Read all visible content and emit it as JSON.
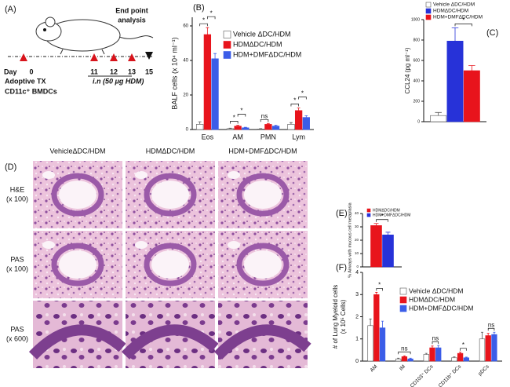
{
  "diagram": {
    "label": "(A)",
    "endpoint": [
      "End point",
      "analysis"
    ],
    "day_label": "Day",
    "days": [
      "0",
      "11",
      "12",
      "13",
      "15"
    ],
    "adoptive": "Adoptive TX",
    "cells": "CD11c⁺ BMDCs",
    "treatment": "i.n (50 μg HDM)"
  },
  "images": {
    "label": "(D)",
    "columns": [
      "VehicleΔDC/HDM",
      "HDMΔDC/HDM",
      "HDM+DMFΔDC/HDM"
    ],
    "rows": [
      {
        "stain": "H&E",
        "magnification": "(x 100)"
      },
      {
        "stain": "PAS",
        "magnification": "(x 100)"
      },
      {
        "stain": "PAS",
        "magnification": "(x 600)"
      }
    ]
  },
  "chart_data": [
    {
      "label": "(B)",
      "type": "bar",
      "y_label": "BALF cells (x 10⁴ ml⁻¹)",
      "categories": [
        "Eos",
        "AM",
        "PMN",
        "Lym"
      ],
      "series": [
        {
          "name": "Vehicle ΔDC/HDM",
          "color": "#ffffff",
          "values": [
            3,
            0.5,
            0.3,
            3
          ],
          "errors": [
            1.5,
            0.3,
            0.2,
            1
          ]
        },
        {
          "name": "HDMΔDC/HDM",
          "color": "#e8141c",
          "values": [
            55,
            2,
            3,
            11
          ],
          "errors": [
            4,
            0.5,
            0.5,
            1.5
          ]
        },
        {
          "name": "HDM+DMFΔDC/HDM",
          "color": "#3b5de8",
          "values": [
            41,
            1,
            2,
            7
          ],
          "errors": [
            3,
            0.3,
            0.5,
            1
          ]
        }
      ],
      "ylim": [
        0,
        65
      ],
      "yticks": [
        0,
        20,
        40,
        60
      ],
      "annotations": [
        "*",
        "*",
        "*",
        "*",
        "ns",
        "*",
        "*"
      ]
    },
    {
      "label": "(C)",
      "type": "bar",
      "y_label": "CCL24 (pg ml⁻¹)",
      "categories": [
        null
      ],
      "series": [
        {
          "name": "Vehicle ΔDC/HDM",
          "color": "#ffffff",
          "values": [
            60
          ],
          "errors": [
            30
          ]
        },
        {
          "name": "HDMΔDC/HDM",
          "color": "#2732d8",
          "values": [
            790
          ],
          "errors": [
            130
          ]
        },
        {
          "name": "HDM+DMFΔDC/HDM",
          "color": "#e8141c",
          "values": [
            500
          ],
          "errors": [
            50
          ]
        }
      ],
      "ylim": [
        0,
        1000
      ],
      "yticks": [
        0,
        200,
        400,
        600,
        800,
        1000
      ],
      "annotations": [
        "*"
      ]
    },
    {
      "label": "(E)",
      "type": "bar",
      "y_label": "% Airways with mucous cell metaplasia",
      "categories": [
        null
      ],
      "series": [
        {
          "name": "HDMΔDC/HDM",
          "color": "#e8141c",
          "values": [
            31
          ],
          "errors": [
            1.5
          ]
        },
        {
          "name": "HDM+DMFΔDC/HDM",
          "color": "#2732d8",
          "values": [
            24
          ],
          "errors": [
            2
          ]
        }
      ],
      "ylim": [
        0,
        40
      ],
      "yticks": [
        0,
        10,
        20,
        30,
        40
      ],
      "annotations": [
        "*"
      ]
    },
    {
      "label": "(F)",
      "type": "bar",
      "y_label": [
        "# of Lung Myeloid cells",
        "(x 10⁵ Cells)"
      ],
      "categories": [
        "AM",
        "IM",
        "CD103⁺ DCs",
        "CD11b⁺ DCs",
        "pDCs"
      ],
      "series": [
        {
          "name": "Vehicle ΔDC/HDM",
          "color": "#ffffff",
          "values": [
            1.6,
            0.1,
            0.3,
            0.15,
            1.0
          ],
          "errors": [
            0.3,
            0.03,
            0.05,
            0.04,
            0.3
          ]
        },
        {
          "name": "HDMΔDC/HDM",
          "color": "#e8141c",
          "values": [
            3.0,
            0.2,
            0.6,
            0.35,
            1.15
          ],
          "errors": [
            0.1,
            0.04,
            0.08,
            0.05,
            0.1
          ]
        },
        {
          "name": "HDM+DMFΔDC/HDM",
          "color": "#3b5de8",
          "values": [
            1.5,
            0.1,
            0.6,
            0.15,
            1.2
          ],
          "errors": [
            0.3,
            0.03,
            0.1,
            0.03,
            0.1
          ]
        }
      ],
      "ylim": [
        0,
        4
      ],
      "yticks": [
        0,
        1,
        2,
        3,
        4
      ],
      "annotations": [
        "*",
        "ns",
        "ns",
        "*",
        "ns"
      ]
    }
  ]
}
